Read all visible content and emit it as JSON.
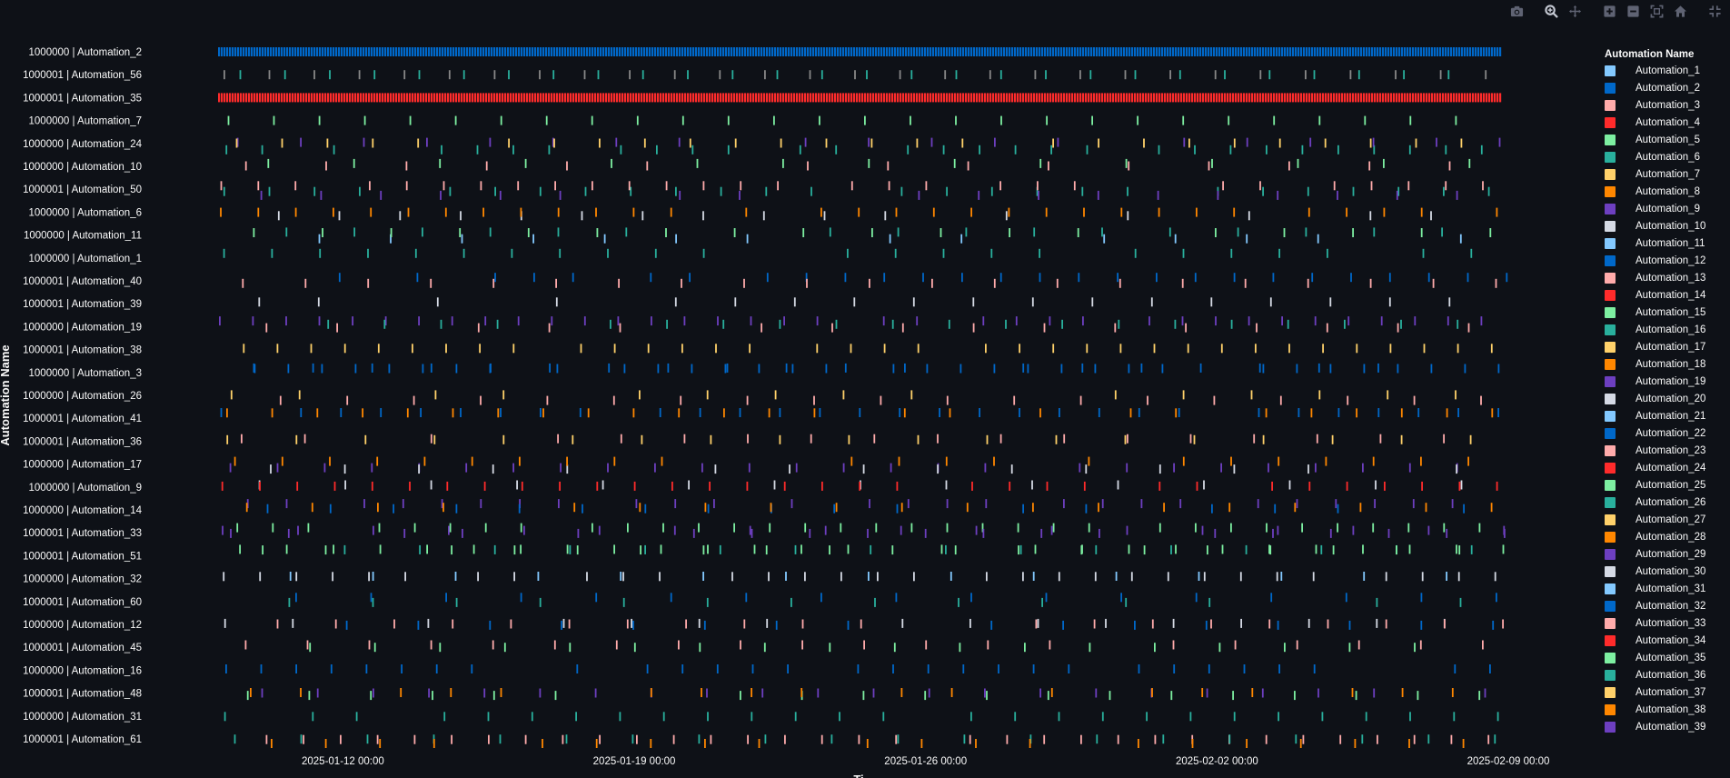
{
  "chart_data": {
    "type": "timeline",
    "title": "",
    "xlabel": "Ti",
    "ylabel": "Automation Name",
    "x_range": [
      "2025-01-09T00:00:00",
      "2025-02-09T00:00:00"
    ],
    "x_ticks": [
      "2025-01-12 00:00",
      "2025-01-19 00:00",
      "2025-01-26 00:00",
      "2025-02-02 00:00",
      "2025-02-09 00:00"
    ],
    "grid": false,
    "legend_position": "right",
    "legend_title": "Automation Name",
    "categories": [
      "1000000 | Automation_2",
      "1000001 | Automation_56",
      "1000001 | Automation_35",
      "1000000 | Automation_7",
      "1000000 | Automation_24",
      "1000000 | Automation_10",
      "1000001 | Automation_50",
      "1000000 | Automation_6",
      "1000000 | Automation_11",
      "1000000 | Automation_1",
      "1000001 | Automation_40",
      "1000001 | Automation_39",
      "1000000 | Automation_19",
      "1000001 | Automation_38",
      "1000000 | Automation_3",
      "1000000 | Automation_26",
      "1000001 | Automation_41",
      "1000001 | Automation_36",
      "1000000 | Automation_17",
      "1000000 | Automation_9",
      "1000000 | Automation_14",
      "1000001 | Automation_33",
      "1000001 | Automation_51",
      "1000000 | Automation_32",
      "1000001 | Automation_60",
      "1000000 | Automation_12",
      "1000001 | Automation_45",
      "1000000 | Automation_16",
      "1000001 | Automation_48",
      "1000000 | Automation_31",
      "1000001 | Automation_61"
    ],
    "series": [
      {
        "name": "Automation_1",
        "color": "#83c9ff"
      },
      {
        "name": "Automation_2",
        "color": "#0068c9"
      },
      {
        "name": "Automation_3",
        "color": "#ffabab"
      },
      {
        "name": "Automation_4",
        "color": "#ff2b2b"
      },
      {
        "name": "Automation_5",
        "color": "#7defa1"
      },
      {
        "name": "Automation_6",
        "color": "#29b09d"
      },
      {
        "name": "Automation_7",
        "color": "#ffd16a"
      },
      {
        "name": "Automation_8",
        "color": "#ff8700"
      },
      {
        "name": "Automation_9",
        "color": "#6d3fc0"
      },
      {
        "name": "Automation_10",
        "color": "#d5dae5"
      },
      {
        "name": "Automation_11",
        "color": "#83c9ff"
      },
      {
        "name": "Automation_12",
        "color": "#0068c9"
      },
      {
        "name": "Automation_13",
        "color": "#ffabab"
      },
      {
        "name": "Automation_14",
        "color": "#ff2b2b"
      },
      {
        "name": "Automation_15",
        "color": "#7defa1"
      },
      {
        "name": "Automation_16",
        "color": "#29b09d"
      },
      {
        "name": "Automation_17",
        "color": "#ffd16a"
      },
      {
        "name": "Automation_18",
        "color": "#ff8700"
      },
      {
        "name": "Automation_19",
        "color": "#6d3fc0"
      },
      {
        "name": "Automation_20",
        "color": "#d5dae5"
      },
      {
        "name": "Automation_21",
        "color": "#83c9ff"
      },
      {
        "name": "Automation_22",
        "color": "#0068c9"
      },
      {
        "name": "Automation_23",
        "color": "#ffabab"
      },
      {
        "name": "Automation_24",
        "color": "#ff2b2b"
      },
      {
        "name": "Automation_25",
        "color": "#7defa1"
      },
      {
        "name": "Automation_26",
        "color": "#29b09d"
      },
      {
        "name": "Automation_27",
        "color": "#ffd16a"
      },
      {
        "name": "Automation_28",
        "color": "#ff8700"
      },
      {
        "name": "Automation_29",
        "color": "#6d3fc0"
      },
      {
        "name": "Automation_30",
        "color": "#d5dae5"
      },
      {
        "name": "Automation_31",
        "color": "#83c9ff"
      },
      {
        "name": "Automation_32",
        "color": "#0068c9"
      },
      {
        "name": "Automation_33",
        "color": "#ffabab"
      },
      {
        "name": "Automation_34",
        "color": "#ff2b2b"
      },
      {
        "name": "Automation_35",
        "color": "#7defa1"
      },
      {
        "name": "Automation_36",
        "color": "#29b09d"
      },
      {
        "name": "Automation_37",
        "color": "#ffd16a"
      },
      {
        "name": "Automation_38",
        "color": "#ff8700"
      },
      {
        "name": "Automation_39",
        "color": "#6d3fc0"
      }
    ],
    "events": [
      {
        "row": 0,
        "series": "Automation_2",
        "pattern": "dense",
        "start": "2025-01-09T00:00:00",
        "end": "2025-02-08T20:00:00"
      },
      {
        "row": 1,
        "series": "Automation_56",
        "pattern": "periodic",
        "start": "2025-01-09T00:00:00",
        "end": "2025-02-08T12:00:00"
      },
      {
        "row": 1,
        "series": "Automation_6",
        "pattern": "periodic",
        "start": "2025-01-09T02:00:00",
        "end": "2025-02-08T12:00:00"
      },
      {
        "row": 2,
        "series": "Automation_4",
        "pattern": "dense",
        "start": "2025-01-09T00:00:00",
        "end": "2025-02-08T20:00:00"
      },
      {
        "row": 3,
        "series": "Automation_35",
        "pattern": "periodic",
        "start": "2025-01-09T00:00:00",
        "end": "2025-02-08T12:00:00"
      }
    ]
  },
  "modebar": {
    "buttons": [
      "camera-icon",
      "zoom-icon",
      "pan-icon",
      "zoom-in-icon",
      "zoom-out-icon",
      "autoscale-icon",
      "home-icon",
      "fullscreen-icon"
    ]
  }
}
